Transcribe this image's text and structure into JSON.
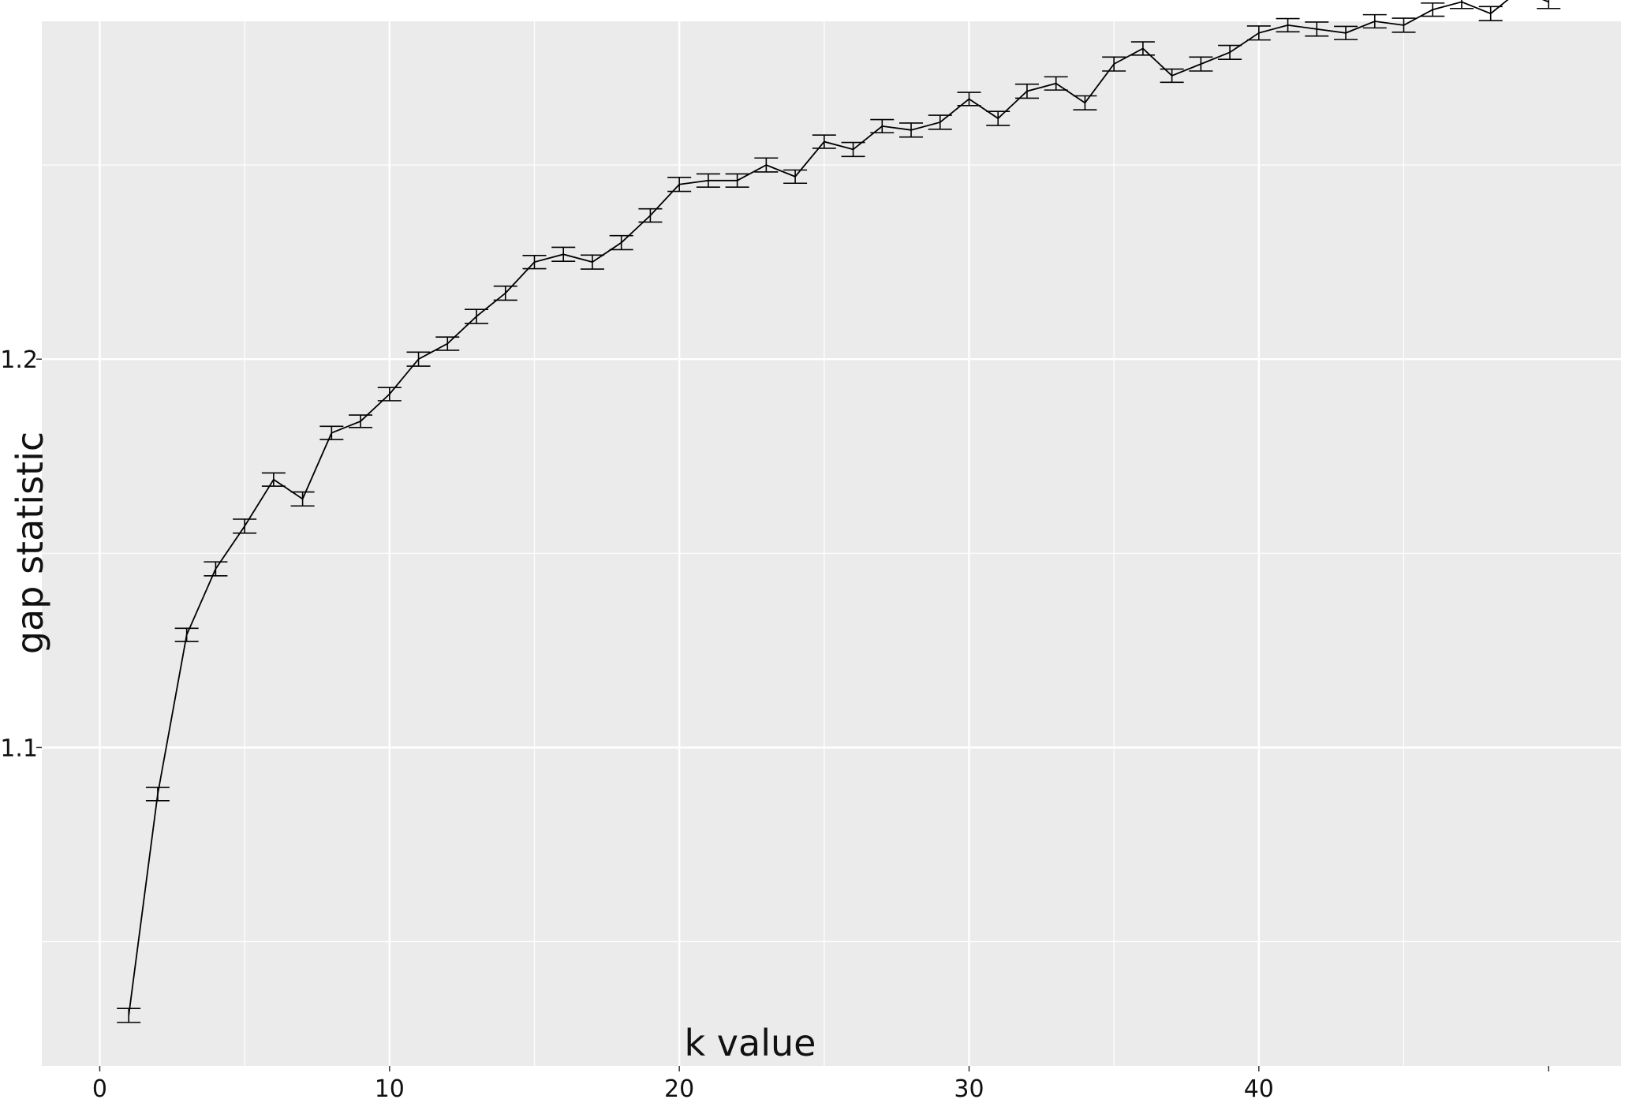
{
  "chart_data": {
    "type": "line",
    "error_bars": true,
    "xlabel": "k value",
    "ylabel": "gap statistic",
    "xlim": [
      -2,
      52.5
    ],
    "ylim": [
      1.018,
      1.287
    ],
    "x_ticks": [
      0,
      10,
      20,
      30,
      40
    ],
    "y_ticks": [
      1.1,
      1.2
    ],
    "grid": true,
    "background": "#ebebeb",
    "gridline_color": "#ffffff",
    "line_color": "#000000",
    "series": [
      {
        "x": [
          1,
          2,
          3,
          4,
          5,
          6,
          7,
          8,
          9,
          10,
          11,
          12,
          13,
          14,
          15,
          16,
          17,
          18,
          19,
          20,
          21,
          22,
          23,
          24,
          25,
          26,
          27,
          28,
          29,
          30,
          31,
          32,
          33,
          34,
          35,
          36,
          37,
          38,
          39,
          40,
          41,
          42,
          43,
          44,
          45,
          46,
          47,
          48,
          49,
          50
        ],
        "y": [
          1.031,
          1.088,
          1.129,
          1.146,
          1.157,
          1.169,
          1.164,
          1.181,
          1.184,
          1.191,
          1.2,
          1.204,
          1.211,
          1.217,
          1.225,
          1.227,
          1.225,
          1.23,
          1.237,
          1.245,
          1.246,
          1.246,
          1.25,
          1.247,
          1.256,
          1.254,
          1.26,
          1.259,
          1.261,
          1.267,
          1.262,
          1.269,
          1.271,
          1.266,
          1.276,
          1.28,
          1.273,
          1.276,
          1.279,
          1.284,
          1.286,
          1.285,
          1.284,
          1.287,
          1.286,
          1.29,
          1.292,
          1.289,
          1.295,
          1.292
        ],
        "err": [
          0.0018,
          0.0017,
          0.0017,
          0.0018,
          0.0018,
          0.0017,
          0.0018,
          0.0017,
          0.0016,
          0.0017,
          0.0018,
          0.0017,
          0.0018,
          0.0018,
          0.0017,
          0.0018,
          0.0018,
          0.0018,
          0.0017,
          0.0018,
          0.0017,
          0.0017,
          0.0018,
          0.0017,
          0.0017,
          0.0018,
          0.0017,
          0.0018,
          0.0018,
          0.0017,
          0.0018,
          0.0018,
          0.0017,
          0.0018,
          0.0018,
          0.0017,
          0.0017,
          0.0018,
          0.0018,
          0.0018,
          0.0017,
          0.0018,
          0.0017,
          0.0017,
          0.0018,
          0.0017,
          0.0017,
          0.0018,
          0.0017,
          0.0017
        ]
      }
    ]
  }
}
